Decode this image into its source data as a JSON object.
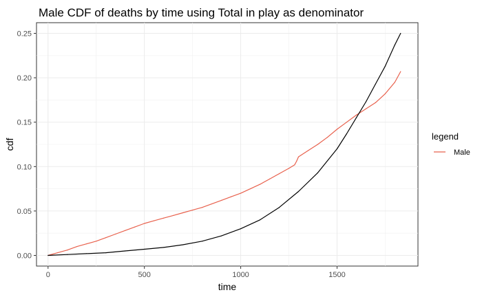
{
  "chart_data": {
    "type": "line",
    "title": "Male CDF of deaths by time using Total in play as denominator",
    "xlabel": "time",
    "ylabel": "cdf",
    "xlim": [
      -60,
      1920
    ],
    "ylim": [
      -0.012,
      0.262
    ],
    "x_ticks": [
      0,
      500,
      1000,
      1500
    ],
    "x_tick_labels": [
      "0",
      "500",
      "1000",
      "1500"
    ],
    "y_ticks": [
      0,
      0.05,
      0.1,
      0.15,
      0.2,
      0.25
    ],
    "y_tick_labels": [
      "0.00",
      "0.05",
      "0.10",
      "0.15",
      "0.20",
      "0.25"
    ],
    "grid": true,
    "legend": {
      "title": "legend",
      "position": "right",
      "entries": [
        "Male"
      ]
    },
    "series": [
      {
        "name": "Male",
        "color": "#e8604c",
        "x": [
          0,
          50,
          100,
          150,
          200,
          250,
          300,
          350,
          400,
          450,
          500,
          550,
          600,
          650,
          700,
          750,
          800,
          850,
          900,
          950,
          1000,
          1050,
          1100,
          1150,
          1200,
          1250,
          1280,
          1290,
          1300,
          1350,
          1400,
          1450,
          1500,
          1550,
          1600,
          1650,
          1700,
          1750,
          1800,
          1830
        ],
        "y": [
          0,
          0.003,
          0.006,
          0.01,
          0.013,
          0.016,
          0.02,
          0.024,
          0.028,
          0.032,
          0.036,
          0.039,
          0.042,
          0.045,
          0.048,
          0.051,
          0.054,
          0.058,
          0.062,
          0.066,
          0.07,
          0.075,
          0.08,
          0.086,
          0.092,
          0.098,
          0.102,
          0.106,
          0.111,
          0.118,
          0.125,
          0.133,
          0.142,
          0.15,
          0.158,
          0.165,
          0.172,
          0.182,
          0.195,
          0.207
        ]
      },
      {
        "color": "#000000",
        "x": [
          0,
          100,
          200,
          300,
          400,
          500,
          600,
          700,
          800,
          900,
          1000,
          1100,
          1200,
          1300,
          1400,
          1500,
          1550,
          1600,
          1650,
          1700,
          1750,
          1800,
          1830
        ],
        "y": [
          0,
          0.001,
          0.002,
          0.003,
          0.005,
          0.007,
          0.009,
          0.012,
          0.016,
          0.022,
          0.03,
          0.04,
          0.054,
          0.072,
          0.093,
          0.12,
          0.137,
          0.155,
          0.173,
          0.193,
          0.213,
          0.237,
          0.25
        ]
      }
    ]
  }
}
